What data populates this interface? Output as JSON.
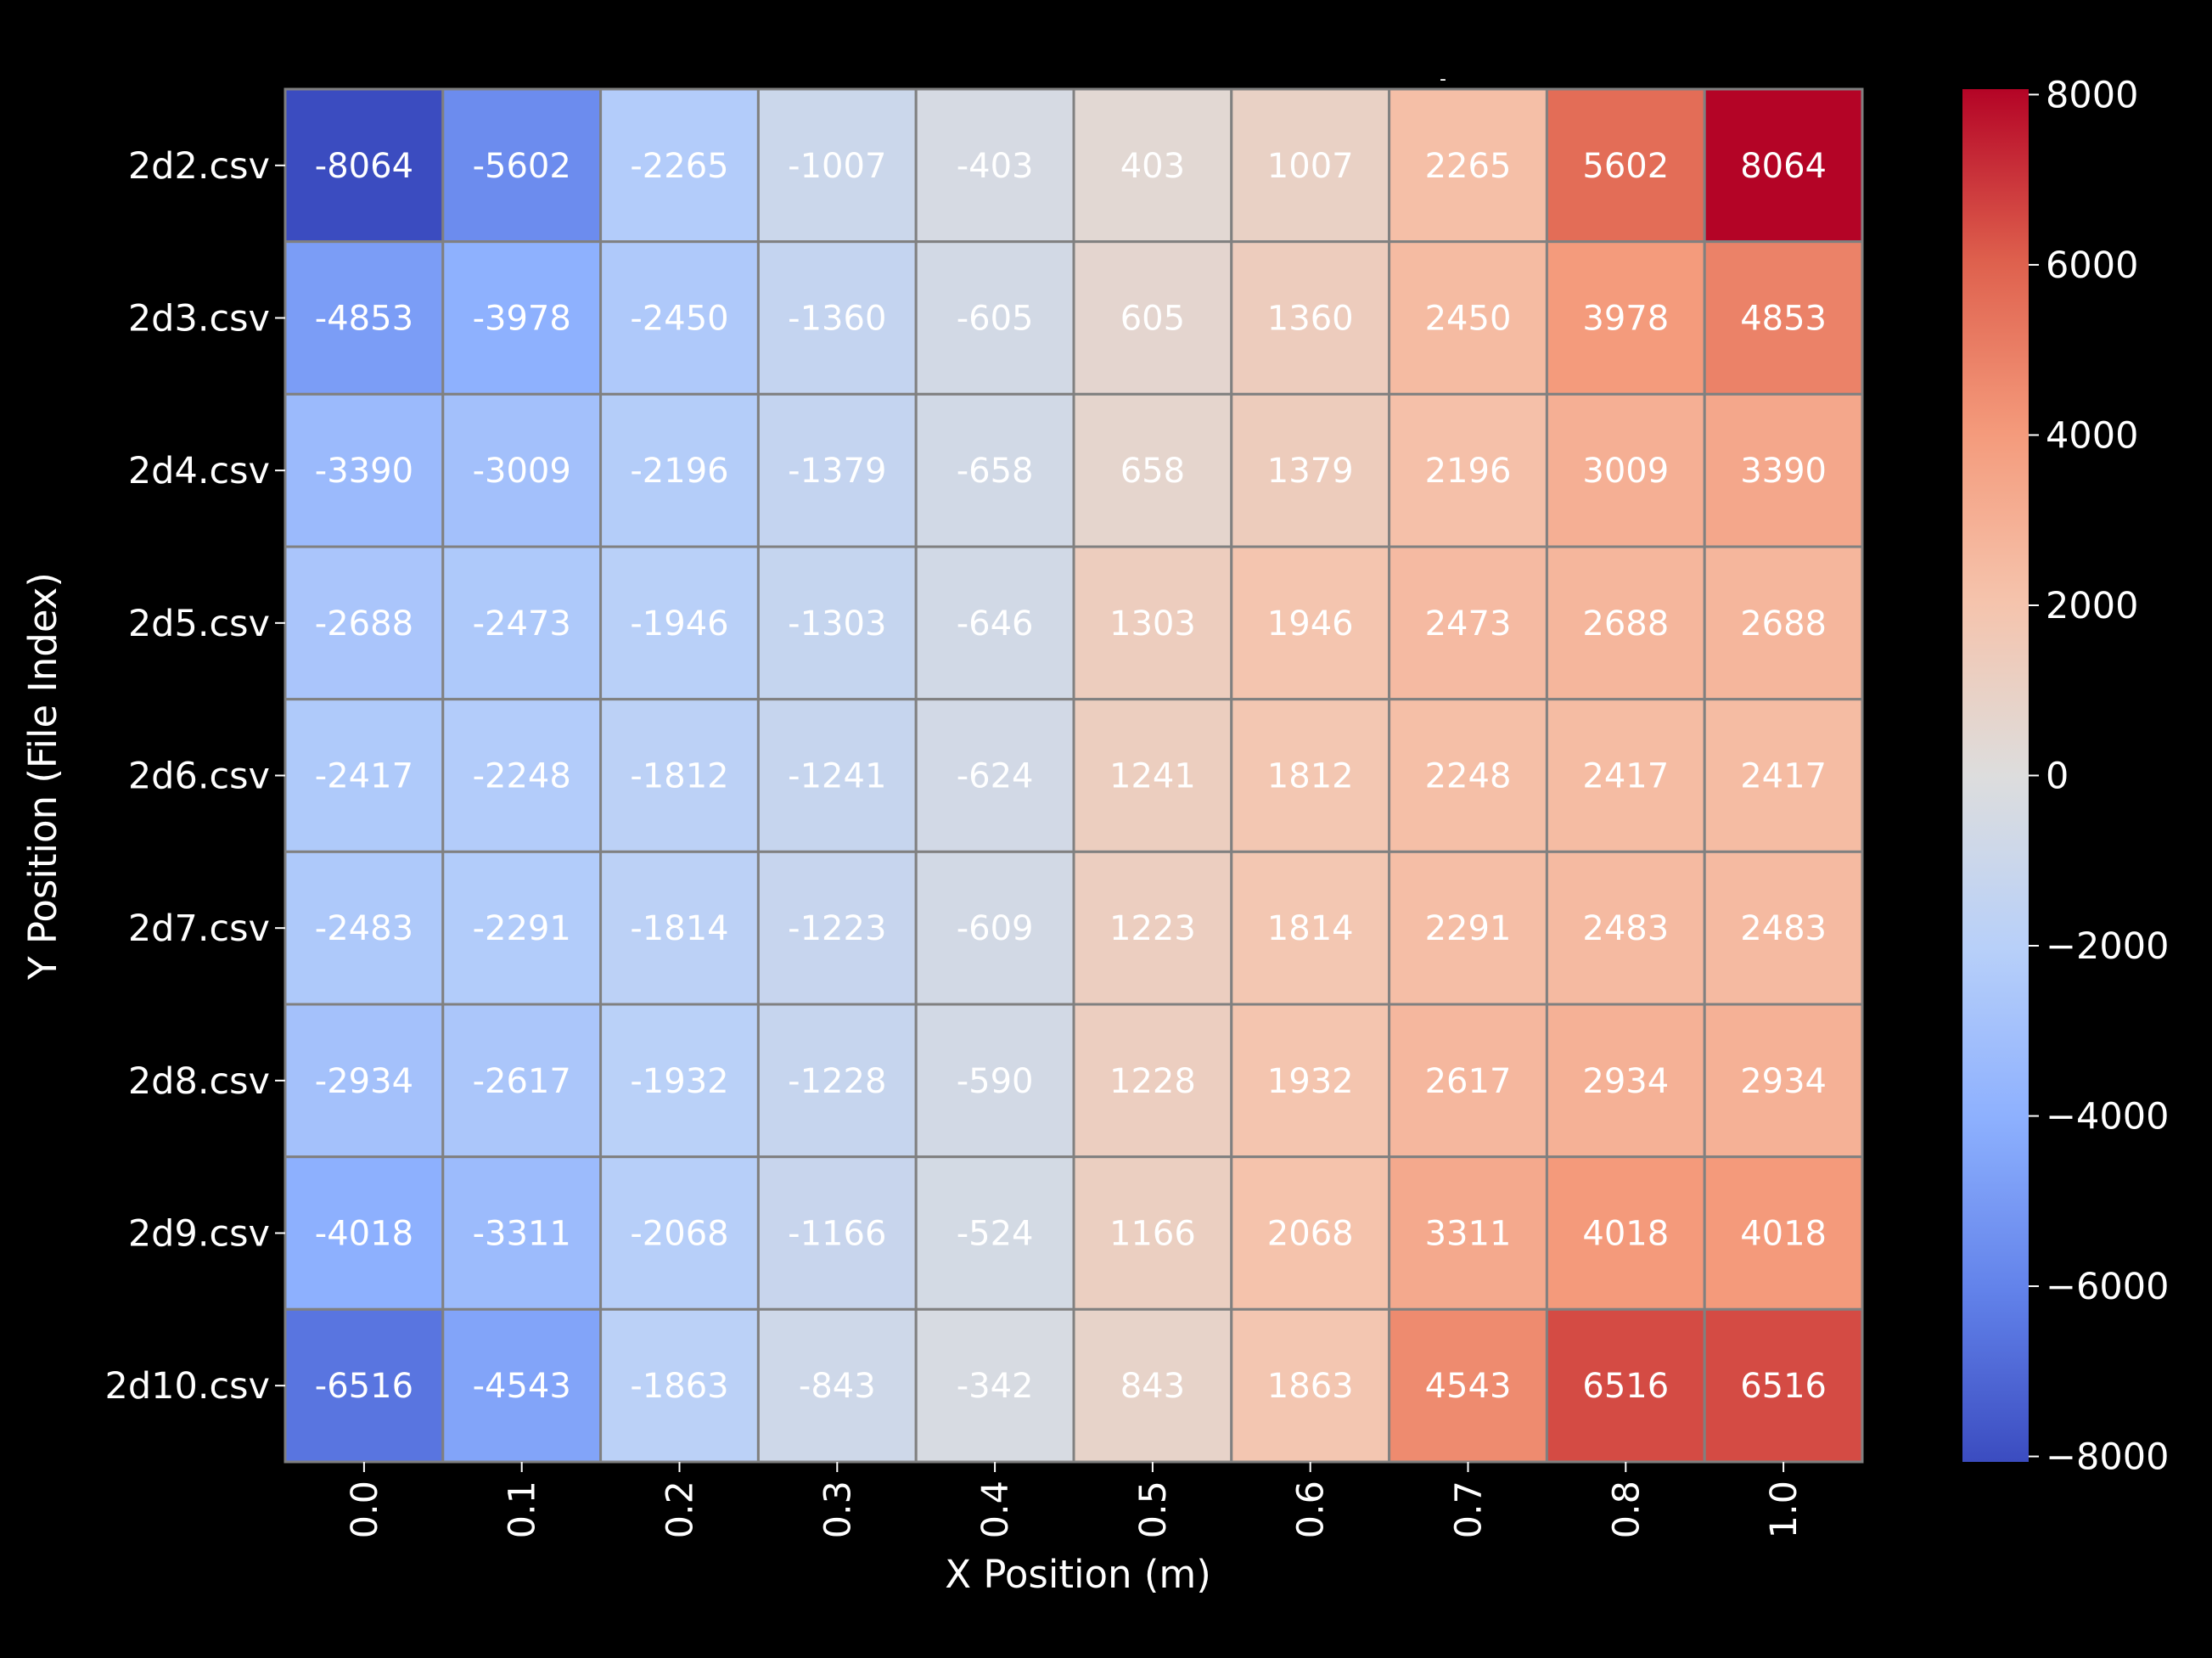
{
  "chart_data": {
    "type": "heatmap",
    "title": "-",
    "xlabel": "X Position (m)",
    "ylabel": "Y Position (File Index)",
    "x_ticks": [
      "0.0",
      "0.1",
      "0.2",
      "0.3",
      "0.4",
      "0.5",
      "0.6",
      "0.7",
      "0.8",
      "1.0"
    ],
    "y_ticks": [
      "2d2.csv",
      "2d3.csv",
      "2d4.csv",
      "2d5.csv",
      "2d6.csv",
      "2d7.csv",
      "2d8.csv",
      "2d9.csv",
      "2d10.csv"
    ],
    "values": [
      [
        -8064,
        -5602,
        -2265,
        -1007,
        -403,
        403,
        1007,
        2265,
        5602,
        8064
      ],
      [
        -4853,
        -3978,
        -2450,
        -1360,
        -605,
        605,
        1360,
        2450,
        3978,
        4853
      ],
      [
        -3390,
        -3009,
        -2196,
        -1379,
        -658,
        658,
        1379,
        2196,
        3009,
        3390
      ],
      [
        -2688,
        -2473,
        -1946,
        -1303,
        -646,
        1303,
        1946,
        2473,
        2688,
        2688
      ],
      [
        -2417,
        -2248,
        -1812,
        -1241,
        -624,
        1241,
        1812,
        2248,
        2417,
        2417
      ],
      [
        -2483,
        -2291,
        -1814,
        -1223,
        -609,
        1223,
        1814,
        2291,
        2483,
        2483
      ],
      [
        -2934,
        -2617,
        -1932,
        -1228,
        -590,
        1228,
        1932,
        2617,
        2934,
        2934
      ],
      [
        -4018,
        -3311,
        -2068,
        -1166,
        -524,
        1166,
        2068,
        3311,
        4018,
        4018
      ],
      [
        -6516,
        -4543,
        -1863,
        -843,
        -342,
        843,
        1863,
        4543,
        6516,
        6516
      ]
    ],
    "colormap": "coolwarm",
    "vmin": -8064,
    "vmax": 8064,
    "colorbar_ticks": [
      8000,
      6000,
      4000,
      2000,
      0,
      -2000,
      -4000,
      -6000,
      -8000
    ],
    "colorbar_tick_labels": [
      "8000",
      "6000",
      "4000",
      "2000",
      "0",
      "−2000",
      "−4000",
      "−6000",
      "−8000"
    ],
    "cell_border_color": "#808080",
    "background": "#000000",
    "annotation_color": "#ffffff"
  }
}
